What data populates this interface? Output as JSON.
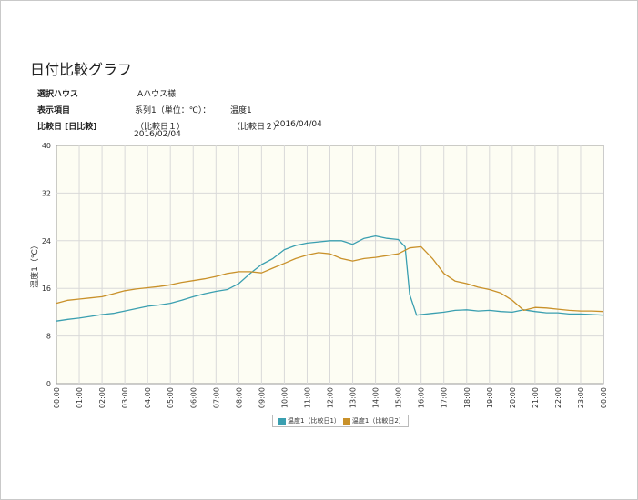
{
  "title": "日付比較グラフ",
  "info": {
    "house_label": "選択ハウス",
    "house_value": "Aハウス様",
    "item_label": "表示項目",
    "item_series": "系列1（単位：℃）：",
    "item_name": "温度1",
    "date_label": "比較日 [日比較]",
    "date1_label": "（比較日１）",
    "date1_value": "2016/02/04",
    "date2_label": "（比較日２）",
    "date2_value": "2016/04/04"
  },
  "colors": {
    "series1": "#3a9fb0",
    "series2": "#c9912a",
    "plot_bg": "#fdfdf3",
    "grid": "#d9d9d9"
  },
  "chart_data": {
    "type": "line",
    "ylabel": "温度1（℃）",
    "ylim": [
      0,
      40
    ],
    "yticks": [
      "0",
      "8",
      "16",
      "24",
      "32",
      "40"
    ],
    "xticks": [
      "00:00",
      "01:00",
      "02:00",
      "03:00",
      "04:00",
      "05:00",
      "06:00",
      "07:00",
      "08:00",
      "09:00",
      "10:00",
      "11:00",
      "12:00",
      "13:00",
      "14:00",
      "15:00",
      "16:00",
      "17:00",
      "18:00",
      "19:00",
      "20:00",
      "21:00",
      "22:00",
      "23:00",
      "00:00"
    ],
    "legend_position": "bottom",
    "series": [
      {
        "name": "温度1（比較日1）",
        "x": [
          0,
          0.5,
          1,
          1.5,
          2,
          2.5,
          3,
          3.5,
          4,
          4.5,
          5,
          5.5,
          6,
          6.5,
          7,
          7.5,
          8,
          8.5,
          9,
          9.5,
          10,
          10.5,
          11,
          11.5,
          12,
          12.5,
          13,
          13.5,
          14,
          14.5,
          15,
          15.3,
          15.5,
          15.8,
          16,
          16.5,
          17,
          17.5,
          18,
          18.5,
          19,
          19.5,
          20,
          20.5,
          21,
          21.5,
          22,
          22.5,
          23,
          23.5,
          24
        ],
        "y": [
          10.5,
          10.8,
          11,
          11.3,
          11.6,
          11.8,
          12.2,
          12.6,
          13,
          13.2,
          13.5,
          14,
          14.6,
          15.1,
          15.5,
          15.8,
          16.8,
          18.5,
          20,
          21,
          22.5,
          23.2,
          23.6,
          23.8,
          24,
          24,
          23.4,
          24.4,
          24.8,
          24.4,
          24.2,
          23,
          15,
          11.5,
          11.6,
          11.8,
          12,
          12.3,
          12.4,
          12.2,
          12.3,
          12.1,
          12,
          12.4,
          12.1,
          11.9,
          11.9,
          11.7,
          11.7,
          11.6,
          11.5
        ]
      },
      {
        "name": "温度1（比較日2）",
        "x": [
          0,
          0.5,
          1,
          1.5,
          2,
          2.5,
          3,
          3.5,
          4,
          4.5,
          5,
          5.5,
          6,
          6.5,
          7,
          7.5,
          8,
          8.5,
          9,
          9.5,
          10,
          10.5,
          11,
          11.5,
          12,
          12.5,
          13,
          13.5,
          14,
          14.5,
          15,
          15.5,
          16,
          16.5,
          17,
          17.5,
          18,
          18.5,
          19,
          19.5,
          20,
          20.5,
          21,
          21.5,
          22,
          22.5,
          23,
          23.5,
          24
        ],
        "y": [
          13.5,
          14,
          14.2,
          14.4,
          14.6,
          15.1,
          15.6,
          15.9,
          16.1,
          16.3,
          16.6,
          17,
          17.3,
          17.6,
          18,
          18.5,
          18.8,
          18.8,
          18.6,
          19.4,
          20.2,
          21,
          21.6,
          22,
          21.8,
          21,
          20.6,
          21,
          21.2,
          21.5,
          21.8,
          22.8,
          23,
          21,
          18.5,
          17.2,
          16.8,
          16.2,
          15.8,
          15.2,
          14,
          12.3,
          12.8,
          12.7,
          12.5,
          12.3,
          12.2,
          12.2,
          12.1
        ]
      }
    ]
  }
}
